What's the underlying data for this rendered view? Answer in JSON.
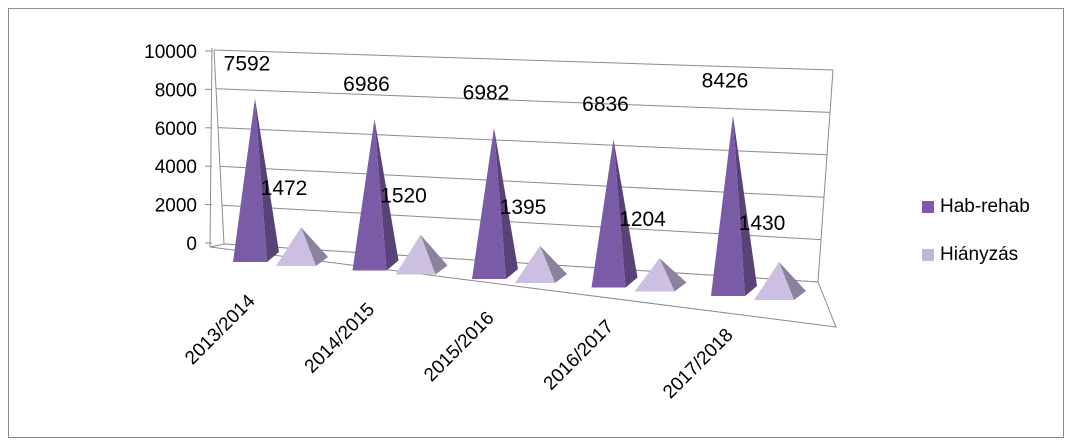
{
  "chart_data": {
    "type": "bar",
    "style": "3d-pyramid",
    "categories": [
      "2013/2014",
      "2014/2015",
      "2015/2016",
      "2016/2017",
      "2017/2018"
    ],
    "series": [
      {
        "name": "Hab-rehab",
        "values": [
          7592,
          6986,
          6982,
          6836,
          8426
        ],
        "color": "#7a5ba6"
      },
      {
        "name": "Hiányzás",
        "values": [
          1472,
          1520,
          1395,
          1204,
          1430
        ],
        "color": "#c4b4dc"
      }
    ],
    "data_labels": {
      "Hab-rehab": [
        "7592",
        "6986",
        "6982",
        "6836",
        "8426"
      ],
      "Hiányzás": [
        "1472",
        "1520",
        "1395",
        "1204",
        "1430"
      ]
    },
    "y_ticks": [
      "0",
      "2000",
      "4000",
      "6000",
      "8000",
      "10000"
    ],
    "ylim": [
      0,
      10000
    ],
    "grid": true,
    "legend_position": "right",
    "title": "",
    "xlabel": "",
    "ylabel": ""
  }
}
